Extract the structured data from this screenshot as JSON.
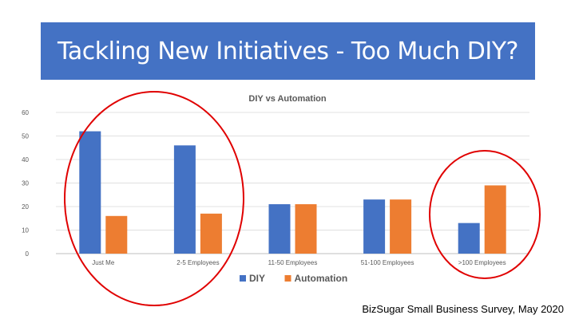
{
  "slide": {
    "title": "Tackling New Initiatives - Too Much DIY?",
    "source": "BizSugar Small Business Survey, May 2020"
  },
  "chart_data": {
    "type": "bar",
    "title": "DIY vs Automation",
    "categories": [
      "Just Me",
      "2-5 Employees",
      "11-50 Employees",
      "51-100 Employees",
      ">100 Employees"
    ],
    "series": [
      {
        "name": "DIY",
        "color": "#4472c4",
        "values": [
          52,
          46,
          21,
          23,
          13
        ]
      },
      {
        "name": "Automation",
        "color": "#ed7d31",
        "values": [
          16,
          17,
          21,
          23,
          29
        ]
      }
    ],
    "xlabel": "",
    "ylabel": "",
    "ylim": [
      0,
      60
    ],
    "yticks": [
      0,
      10,
      20,
      30,
      40,
      50,
      60
    ],
    "grid": true,
    "legend": "bottom",
    "annotations": [
      {
        "shape": "ellipse",
        "color": "#e00000",
        "highlights": [
          "Just Me",
          "2-5 Employees"
        ]
      },
      {
        "shape": "ellipse",
        "color": "#e00000",
        "highlights": [
          ">100 Employees"
        ]
      }
    ]
  }
}
